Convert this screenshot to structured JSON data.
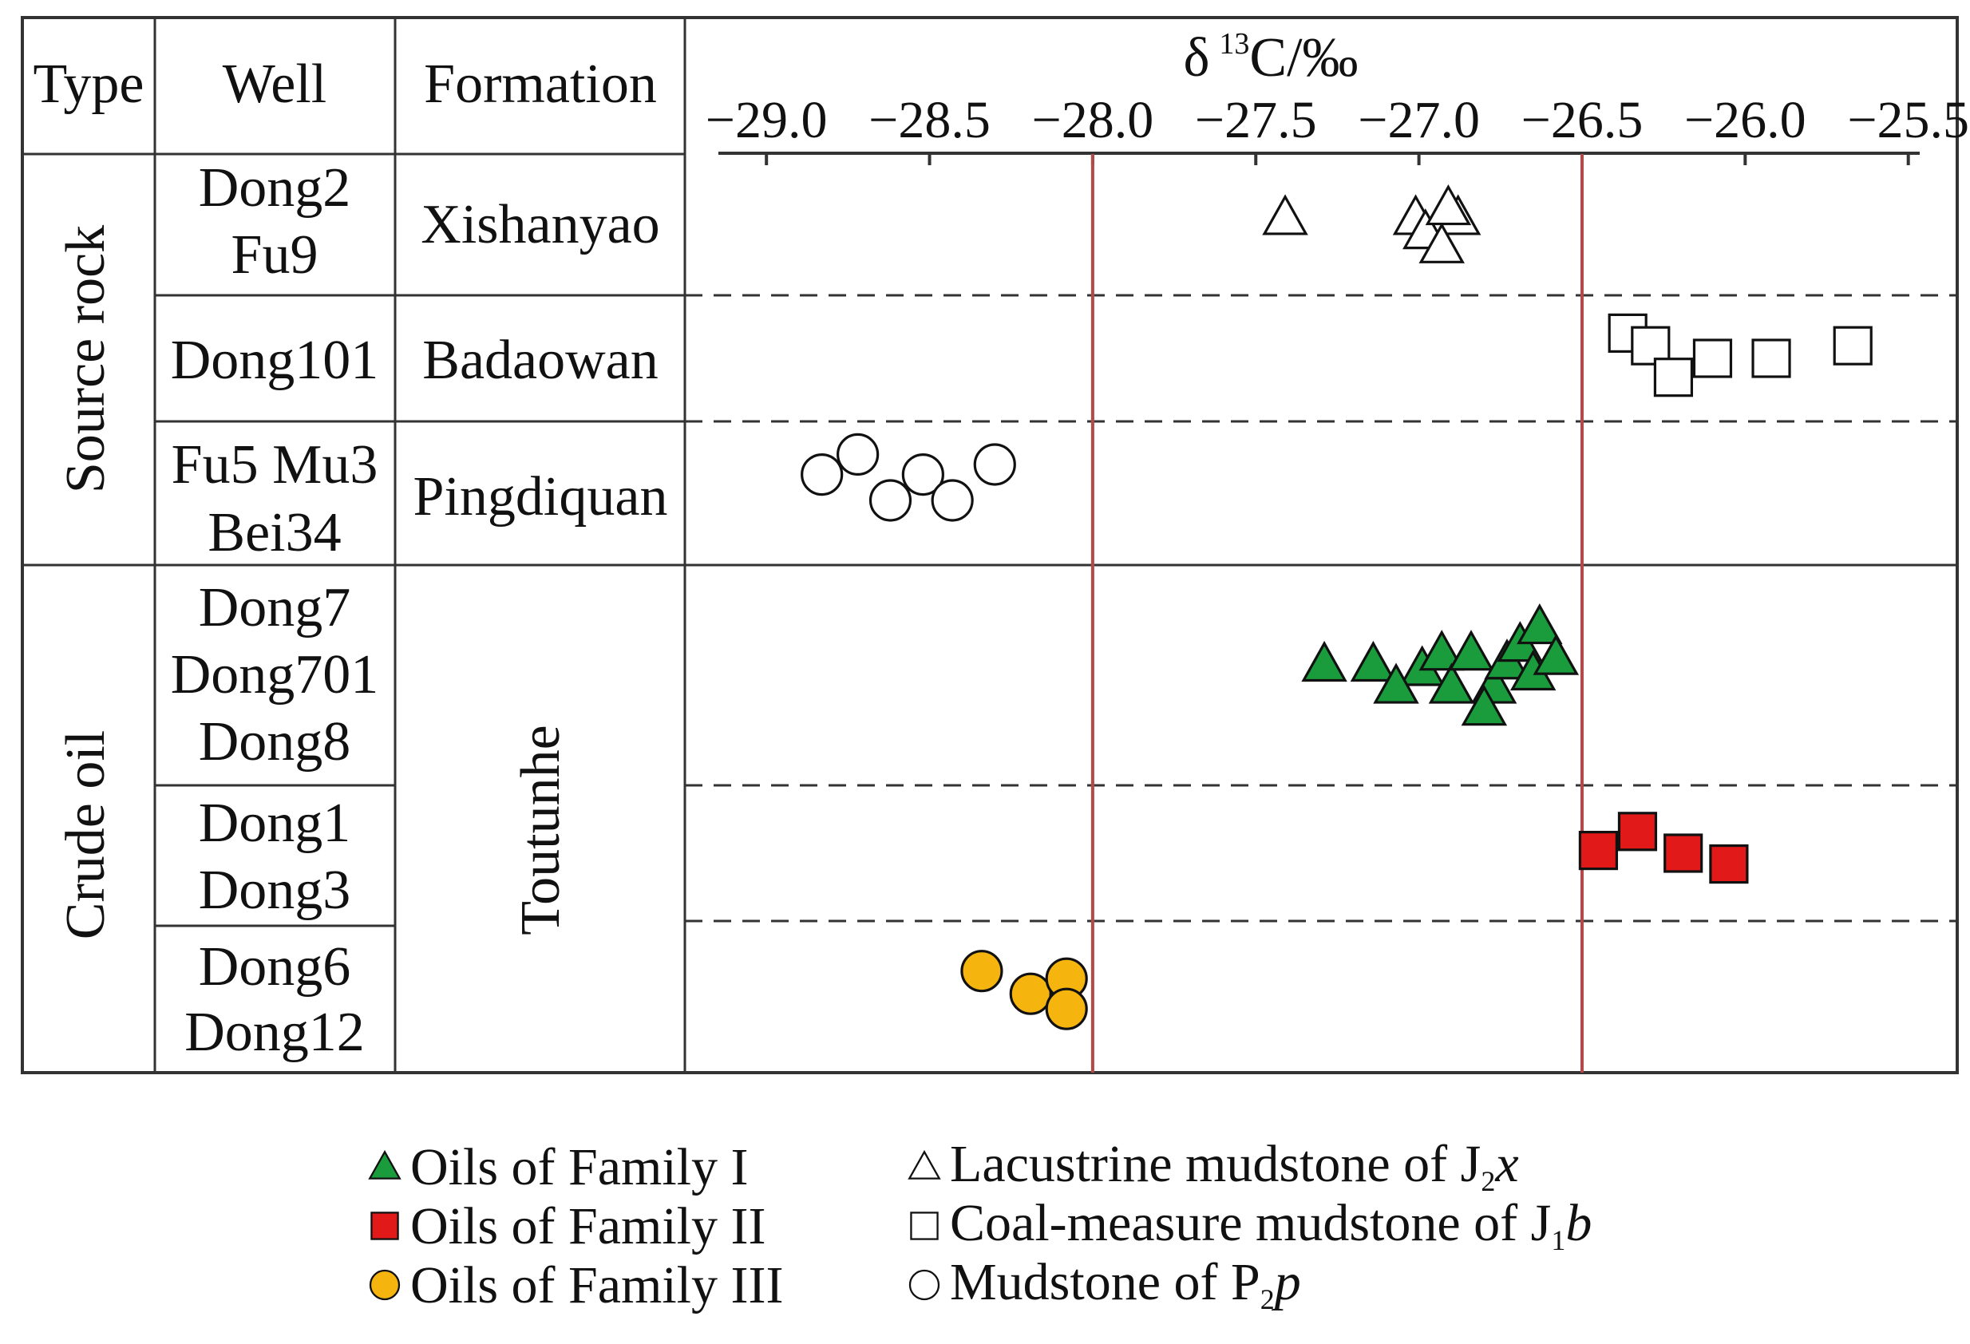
{
  "headers": {
    "type": "Type",
    "well": "Well",
    "formation": "Formation"
  },
  "axis": {
    "label_delta": "δ",
    "label_sup": "13",
    "label_main": "C/‰",
    "ticks": [
      -29.0,
      -28.5,
      -28.0,
      -27.5,
      -27.0,
      -26.5,
      -26.0,
      -25.5
    ],
    "tick_labels": [
      "−29.0",
      "−28.5",
      "−28.0",
      "−27.5",
      "−27.0",
      "−26.5",
      "−26.0",
      "−25.5"
    ],
    "xlim": [
      -29.25,
      -25.35
    ],
    "boundaries": [
      -28.0,
      -26.5
    ],
    "boundary_color": "#b24a4a"
  },
  "groups": {
    "source": "Source rock",
    "crude": "Crude oil"
  },
  "rows": [
    {
      "wells": [
        "Dong2",
        "Fu9"
      ],
      "formation": "Xishanyao"
    },
    {
      "wells": [
        "Dong101"
      ],
      "formation": "Badaowan"
    },
    {
      "wells": [
        "Fu5 Mu3",
        "Bei34"
      ],
      "formation": "Pingdiquan"
    },
    {
      "wells": [
        "Dong7",
        "Dong701",
        "Dong8"
      ]
    },
    {
      "wells": [
        "Dong1",
        "Dong3"
      ]
    },
    {
      "wells": [
        "Dong6",
        "Dong12"
      ]
    }
  ],
  "crude_formation": "Toutunhe",
  "chart_data": {
    "type": "scatter",
    "title": "",
    "xlabel": "δ13C/‰",
    "xlim": [
      -29.25,
      -25.35
    ],
    "series": [
      {
        "name": "Lacustrine mudstone of J2x",
        "marker": "triangle-open",
        "row": 0,
        "color": "#ffffff",
        "points": [
          [
            -27.41,
            0.45
          ],
          [
            -27.01,
            0.45
          ],
          [
            -26.88,
            0.45
          ],
          [
            -26.98,
            0.55
          ],
          [
            -26.93,
            0.65
          ],
          [
            -26.91,
            0.38
          ]
        ]
      },
      {
        "name": "Coal-measure mudstone of J1b",
        "marker": "square-open",
        "row": 1,
        "color": "#ffffff",
        "points": [
          [
            -26.36,
            0.3
          ],
          [
            -26.29,
            0.4
          ],
          [
            -26.1,
            0.5
          ],
          [
            -26.22,
            0.65
          ],
          [
            -25.92,
            0.5
          ],
          [
            -25.67,
            0.4
          ]
        ]
      },
      {
        "name": "Mudstone of P2p",
        "marker": "circle-open",
        "row": 2,
        "color": "#ffffff",
        "points": [
          [
            -28.83,
            0.37
          ],
          [
            -28.72,
            0.23
          ],
          [
            -28.62,
            0.55
          ],
          [
            -28.52,
            0.37
          ],
          [
            -28.43,
            0.55
          ],
          [
            -28.3,
            0.3
          ]
        ]
      },
      {
        "name": "Oils of Family I",
        "marker": "triangle",
        "row": 3,
        "color": "#1a9b3c",
        "points": [
          [
            -27.29,
            0.45
          ],
          [
            -27.14,
            0.45
          ],
          [
            -26.99,
            0.47
          ],
          [
            -26.93,
            0.4
          ],
          [
            -26.9,
            0.55
          ],
          [
            -26.84,
            0.4
          ],
          [
            -26.77,
            0.55
          ],
          [
            -26.73,
            0.44
          ],
          [
            -26.69,
            0.36
          ],
          [
            -26.65,
            0.49
          ],
          [
            -26.63,
            0.28
          ],
          [
            -26.58,
            0.42
          ],
          [
            -27.07,
            0.55
          ],
          [
            -26.8,
            0.65
          ]
        ]
      },
      {
        "name": "Oils of Family II",
        "marker": "square",
        "row": 4,
        "color": "#e11919",
        "points": [
          [
            -26.45,
            0.48
          ],
          [
            -26.33,
            0.34
          ],
          [
            -26.19,
            0.5
          ],
          [
            -26.05,
            0.58
          ]
        ]
      },
      {
        "name": "Oils of Family III",
        "marker": "circle",
        "row": 5,
        "color": "#f5b50e",
        "points": [
          [
            -28.34,
            0.33
          ],
          [
            -28.19,
            0.48
          ],
          [
            -28.08,
            0.38
          ],
          [
            -28.08,
            0.58
          ]
        ]
      }
    ]
  },
  "legend": {
    "left": [
      {
        "marker": "triangle",
        "label": "Oils of Family I",
        "color": "#1a9b3c"
      },
      {
        "marker": "square",
        "label": "Oils of Family II",
        "color": "#e11919"
      },
      {
        "marker": "circle",
        "label": "Oils of Family III",
        "color": "#f5b50e"
      }
    ],
    "right": [
      {
        "marker": "triangle-open",
        "pre": "Lacustrine mudstone of J",
        "sub": "2",
        "post": "x"
      },
      {
        "marker": "square-open",
        "pre": "Coal-measure mudstone of J",
        "sub": "1",
        "post": "b"
      },
      {
        "marker": "circle-open",
        "pre": "Mudstone of P",
        "sub": "2",
        "post": "p"
      }
    ]
  }
}
